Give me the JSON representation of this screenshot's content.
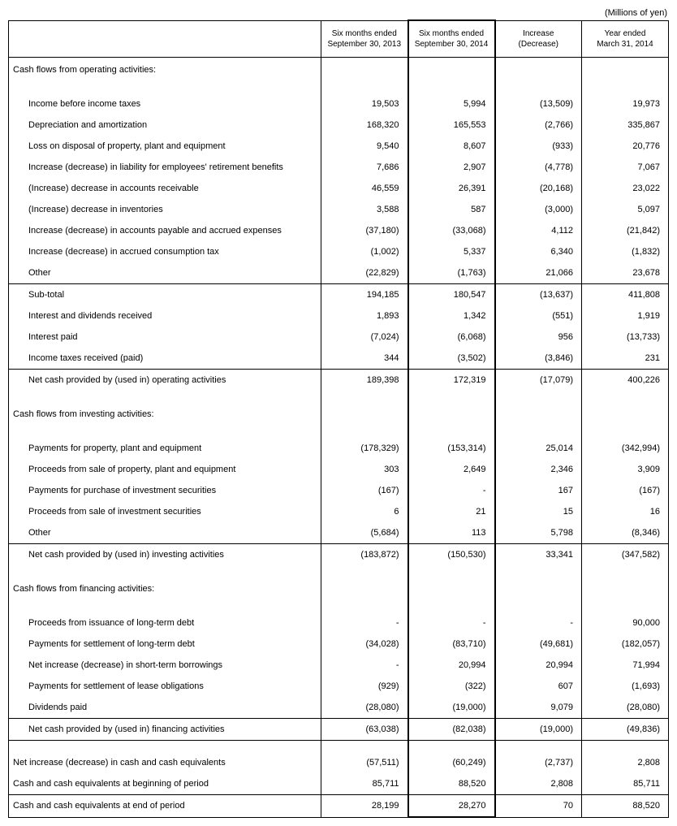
{
  "units": "(Millions of yen)",
  "headers": {
    "col1": "Six months ended\nSeptember 30, 2013",
    "col2": "Six months ended\nSeptember 30, 2014",
    "col3": "Increase\n(Decrease)",
    "col4": "Year ended\nMarch 31, 2014"
  },
  "sections": [
    {
      "title": "Cash flows from operating activities:",
      "rows": [
        {
          "label": "Income before income taxes",
          "indent": true,
          "vals": [
            "19,503",
            "5,994",
            "(13,509)",
            "19,973"
          ]
        },
        {
          "label": "Depreciation and amortization",
          "indent": true,
          "vals": [
            "168,320",
            "165,553",
            "(2,766)",
            "335,867"
          ]
        },
        {
          "label": "Loss on disposal of property, plant and equipment",
          "indent": true,
          "vals": [
            "9,540",
            "8,607",
            "(933)",
            "20,776"
          ]
        },
        {
          "label": "Increase (decrease) in liability for employees' retirement benefits",
          "indent": true,
          "vals": [
            "7,686",
            "2,907",
            "(4,778)",
            "7,067"
          ]
        },
        {
          "label": "(Increase) decrease in accounts receivable",
          "indent": true,
          "vals": [
            "46,559",
            "26,391",
            "(20,168)",
            "23,022"
          ]
        },
        {
          "label": "(Increase) decrease in inventories",
          "indent": true,
          "vals": [
            "3,588",
            "587",
            "(3,000)",
            "5,097"
          ]
        },
        {
          "label": "Increase (decrease) in accounts payable and accrued expenses",
          "indent": true,
          "vals": [
            "(37,180)",
            "(33,068)",
            "4,112",
            "(21,842)"
          ]
        },
        {
          "label": "Increase (decrease) in accrued consumption tax",
          "indent": true,
          "vals": [
            "(1,002)",
            "5,337",
            "6,340",
            "(1,832)"
          ]
        },
        {
          "label": "Other",
          "indent": true,
          "vals": [
            "(22,829)",
            "(1,763)",
            "21,066",
            "23,678"
          ],
          "border": true
        },
        {
          "label": "Sub-total",
          "indent": true,
          "vals": [
            "194,185",
            "180,547",
            "(13,637)",
            "411,808"
          ]
        },
        {
          "label": "Interest and dividends received",
          "indent": true,
          "vals": [
            "1,893",
            "1,342",
            "(551)",
            "1,919"
          ]
        },
        {
          "label": "Interest paid",
          "indent": true,
          "vals": [
            "(7,024)",
            "(6,068)",
            "956",
            "(13,733)"
          ]
        },
        {
          "label": "Income taxes received (paid)",
          "indent": true,
          "vals": [
            "344",
            "(3,502)",
            "(3,846)",
            "231"
          ],
          "border": true
        },
        {
          "label": "Net cash provided by (used in) operating activities",
          "indent": true,
          "vals": [
            "189,398",
            "172,319",
            "(17,079)",
            "400,226"
          ]
        }
      ]
    },
    {
      "title": "Cash flows from investing activities:",
      "rows": [
        {
          "label": "Payments for property, plant and equipment",
          "indent": true,
          "vals": [
            "(178,329)",
            "(153,314)",
            "25,014",
            "(342,994)"
          ]
        },
        {
          "label": "Proceeds from sale of property, plant and equipment",
          "indent": true,
          "vals": [
            "303",
            "2,649",
            "2,346",
            "3,909"
          ]
        },
        {
          "label": "Payments for purchase of investment securities",
          "indent": true,
          "vals": [
            "(167)",
            "-",
            "167",
            "(167)"
          ]
        },
        {
          "label": "Proceeds from sale of investment securities",
          "indent": true,
          "vals": [
            "6",
            "21",
            "15",
            "16"
          ]
        },
        {
          "label": "Other",
          "indent": true,
          "vals": [
            "(5,684)",
            "113",
            "5,798",
            "(8,346)"
          ],
          "border": true
        },
        {
          "label": "Net cash provided by (used in) investing activities",
          "indent": true,
          "vals": [
            "(183,872)",
            "(150,530)",
            "33,341",
            "(347,582)"
          ]
        }
      ]
    },
    {
      "title": "Cash flows from financing activities:",
      "rows": [
        {
          "label": "Proceeds from issuance of long-term debt",
          "indent": true,
          "vals": [
            "-",
            "-",
            "-",
            "90,000"
          ]
        },
        {
          "label": "Payments for settlement of long-term debt",
          "indent": true,
          "vals": [
            "(34,028)",
            "(83,710)",
            "(49,681)",
            "(182,057)"
          ]
        },
        {
          "label": "Net increase (decrease) in short-term borrowings",
          "indent": true,
          "vals": [
            "-",
            "20,994",
            "20,994",
            "71,994"
          ]
        },
        {
          "label": "Payments for settlement of lease obligations",
          "indent": true,
          "vals": [
            "(929)",
            "(322)",
            "607",
            "(1,693)"
          ]
        },
        {
          "label": "Dividends paid",
          "indent": true,
          "vals": [
            "(28,080)",
            "(19,000)",
            "9,079",
            "(28,080)"
          ],
          "border": true
        },
        {
          "label": "Net cash provided by (used in) financing activities",
          "indent": true,
          "vals": [
            "(63,038)",
            "(82,038)",
            "(19,000)",
            "(49,836)"
          ],
          "border": true
        }
      ]
    }
  ],
  "footer_rows": [
    {
      "label": "Net increase (decrease) in cash and cash equivalents",
      "vals": [
        "(57,511)",
        "(60,249)",
        "(2,737)",
        "2,808"
      ]
    },
    {
      "label": "Cash and cash equivalents at beginning of period",
      "vals": [
        "85,711",
        "88,520",
        "2,808",
        "85,711"
      ],
      "border": true
    },
    {
      "label": "Cash and cash equivalents at end of period",
      "vals": [
        "28,199",
        "28,270",
        "70",
        "88,520"
      ],
      "border": true
    }
  ]
}
